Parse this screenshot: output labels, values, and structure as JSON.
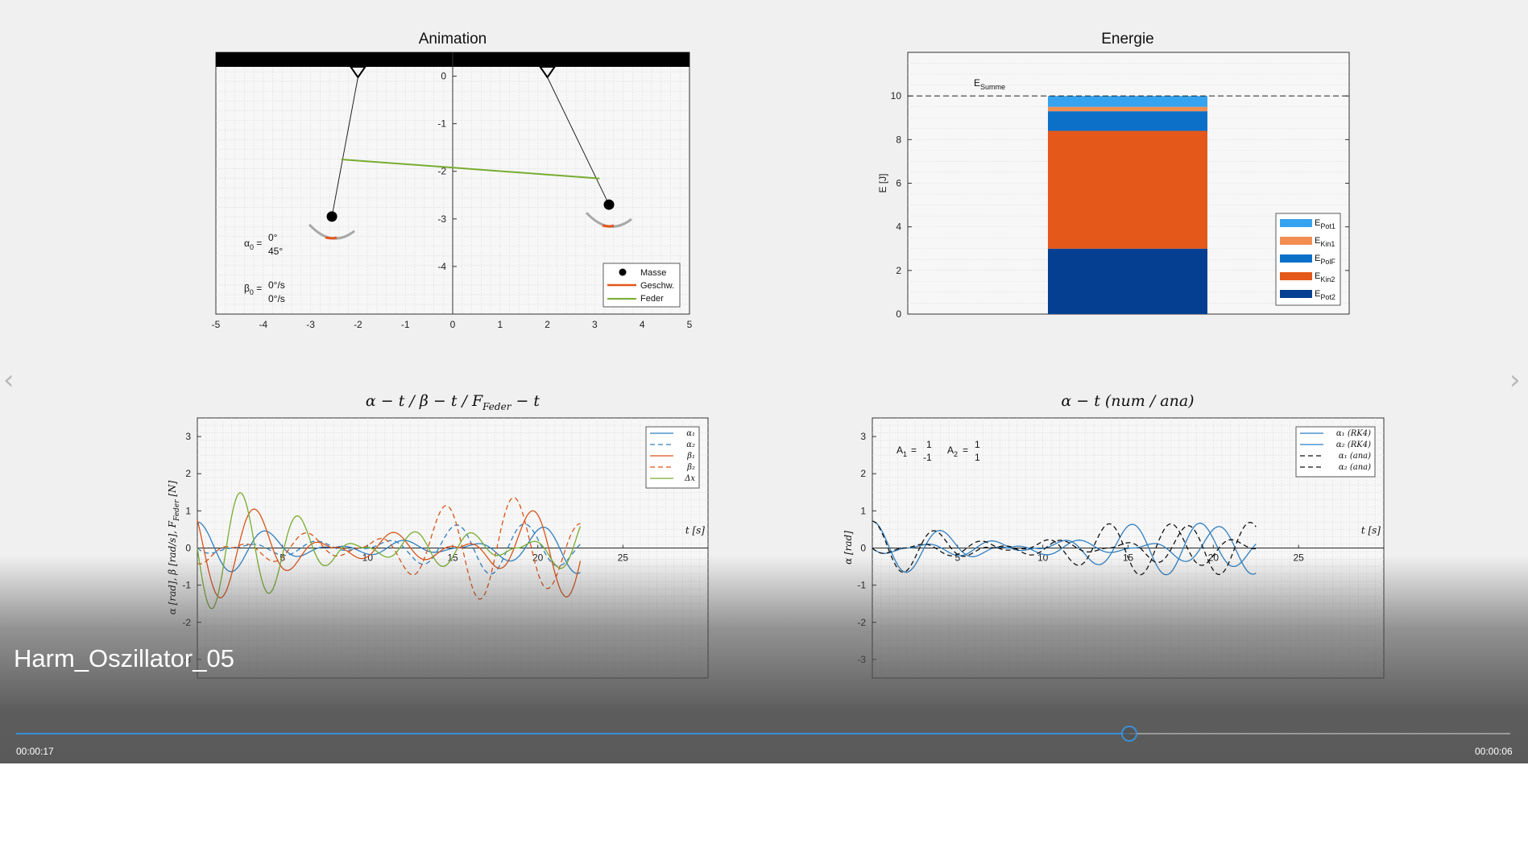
{
  "video": {
    "title": "Harm_Oszillator_05",
    "elapsed": "00:00:17",
    "remaining": "00:00:06",
    "progress": 0.745,
    "accent": "#3b8fd8"
  },
  "nav": {
    "prev_icon": "chevron-left-icon",
    "next_icon": "chevron-right-icon",
    "prev_glyph": "‹",
    "next_glyph": "›"
  },
  "chart_data": [
    {
      "type": "scatter",
      "title": "Animation",
      "xlim": [
        -5,
        5
      ],
      "ylim": [
        -5,
        0.5
      ],
      "xticks": [
        "-5",
        "-4",
        "-3",
        "-2",
        "-1",
        "0",
        "1",
        "2",
        "3",
        "4",
        "5"
      ],
      "yticks": [
        "0",
        "-1",
        "-2",
        "-3",
        "-4"
      ],
      "grid": true,
      "series": [
        {
          "name": "Masse",
          "points": [
            [
              -2.55,
              -2.95
            ],
            [
              3.3,
              -2.7
            ]
          ]
        },
        {
          "name": "Feder",
          "points": [
            [
              -2.35,
              -1.75
            ],
            [
              3.1,
              -2.15
            ]
          ]
        }
      ],
      "pivots": [
        [
          -2.0,
          0.2
        ],
        [
          2.0,
          0.2
        ]
      ],
      "legend": [
        "Masse",
        "Geschw.",
        "Feder"
      ],
      "legend_position": "bottom-right",
      "annotations": {
        "alpha0": "α",
        "alpha0_sub": "0",
        "alpha0_eq": "=",
        "alpha0_v1": "0°",
        "alpha0_v2": "45°",
        "beta0": "β",
        "beta0_sub": "0",
        "beta0_eq": "=",
        "beta0_v1": "0°/s",
        "beta0_v2": "0°/s"
      },
      "colors": {
        "Masse": "#000000",
        "Geschw.": "#e4561a",
        "Feder": "#77ac30"
      }
    },
    {
      "type": "bar",
      "title": "Energie",
      "ylabel": "E [J]",
      "ylim": [
        0,
        12
      ],
      "yticks": [
        "0",
        "2",
        "4",
        "6",
        "8",
        "10"
      ],
      "stacked": true,
      "segments": [
        {
          "name": "EPot2",
          "value": 3.0
        },
        {
          "name": "EKin2",
          "value": 5.4
        },
        {
          "name": "EPolF",
          "value": 0.9
        },
        {
          "name": "EKin1",
          "value": 0.2
        },
        {
          "name": "EPot1",
          "value": 0.5
        }
      ],
      "reference": {
        "value": 10,
        "label": "E",
        "label_sub": "Summe"
      },
      "legend": [
        {
          "main": "E",
          "sub": "Pot1",
          "color": "#36a3f0"
        },
        {
          "main": "E",
          "sub": "Kin1",
          "color": "#f28e52"
        },
        {
          "main": "E",
          "sub": "PolF",
          "color": "#0c70c8"
        },
        {
          "main": "E",
          "sub": "Kin2",
          "color": "#e4581a"
        },
        {
          "main": "E",
          "sub": "Pot2",
          "color": "#053f91"
        }
      ],
      "legend_position": "bottom-right"
    },
    {
      "type": "line",
      "title": "α − t / β − t / F",
      "title_sub": "Feder",
      "title_tail": " − t",
      "xlabel": "t [s]",
      "ylabel": "α [rad], β [rad/s], F",
      "ylabel_sub": "Feder",
      "ylabel_tail": " [N]",
      "xlim": [
        0,
        30
      ],
      "ylim": [
        -3.5,
        3.5
      ],
      "xticks": [
        "5",
        "10",
        "15",
        "20",
        "25"
      ],
      "yticks": [
        "3",
        "2",
        "1",
        "0",
        "-1",
        "-2",
        "-3"
      ],
      "t_end": 22.5,
      "series": [
        {
          "name": "α₁",
          "amplitude": 0.7,
          "omega": 1.55,
          "beat": 0.27,
          "phase": 0,
          "color": "#2f7fc1",
          "dash": false
        },
        {
          "name": "α₂",
          "amplitude": 0.7,
          "omega": 1.55,
          "beat": 0.27,
          "phase": 1.5708,
          "color": "#2f7fc1",
          "dash": true
        },
        {
          "name": "β₁",
          "amplitude": 1.4,
          "omega": 1.55,
          "beat": 0.27,
          "phase": 1.0,
          "color": "#d95319",
          "dash": false
        },
        {
          "name": "β₂",
          "amplitude": 1.4,
          "omega": 1.55,
          "beat": 0.27,
          "phase": 2.57,
          "color": "#d95319",
          "dash": true
        },
        {
          "name": "Δx",
          "amplitude": 1.65,
          "omega": 1.85,
          "beat": 0.22,
          "phase": 1.57,
          "color": "#77ac30",
          "dash": false
        }
      ],
      "legend_position": "top-right"
    },
    {
      "type": "line",
      "title": "α − t (num / ana)",
      "xlabel": "t [s]",
      "ylabel": "α [rad]",
      "xlim": [
        0,
        30
      ],
      "ylim": [
        -3.5,
        3.5
      ],
      "xticks": [
        "5",
        "10",
        "15",
        "20",
        "25"
      ],
      "yticks": [
        "3",
        "2",
        "1",
        "0",
        "-1",
        "-2",
        "-3"
      ],
      "t_end": 22.5,
      "annotations": {
        "A1": "A",
        "A1_sub": "1",
        "A1_eq": "=",
        "A1_v1": "1",
        "A1_v2": "-1",
        "A2": "A",
        "A2_sub": "2",
        "A2_eq": "=",
        "A2_v1": "1",
        "A2_v2": "1"
      },
      "series": [
        {
          "name": "α₁ (RK4)",
          "amplitude": 0.72,
          "omega": 1.55,
          "beat": 0.27,
          "phase": 0,
          "color": "#2f7fc1",
          "dash": false
        },
        {
          "name": "α₂ (RK4)",
          "amplitude": 0.72,
          "omega": 1.55,
          "beat": 0.27,
          "phase": 1.5708,
          "color": "#2f7fc1",
          "dash": false
        },
        {
          "name": "α₁ (ana)",
          "amplitude": 0.72,
          "omega": 1.7,
          "beat": 0.3,
          "phase": 0,
          "color": "#111111",
          "dash": true
        },
        {
          "name": "α₂ (ana)",
          "amplitude": 0.72,
          "omega": 1.7,
          "beat": 0.3,
          "phase": 1.5708,
          "color": "#111111",
          "dash": true
        }
      ],
      "legend_position": "top-right"
    }
  ]
}
